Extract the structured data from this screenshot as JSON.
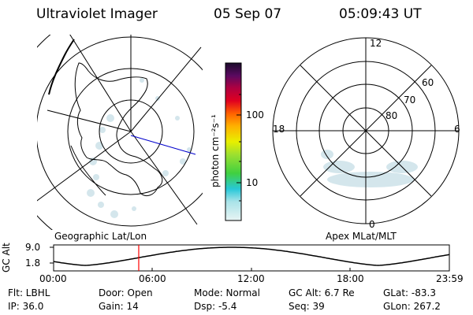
{
  "header": {
    "title": "Ultraviolet Imager",
    "date": "05 Sep 07",
    "time": "05:09:43 UT"
  },
  "geo_panel": {
    "label": "Geographic Lat/Lon"
  },
  "polar_panel": {
    "label": "Apex MLat/MLT",
    "mlt_labels": {
      "top": "12",
      "bottom": "0",
      "left": "18",
      "right": "6"
    },
    "lat_labels": [
      "60",
      "70",
      "80"
    ]
  },
  "colorbar": {
    "unit": "photon cm⁻²s⁻¹",
    "ticks": [
      "100",
      "10"
    ]
  },
  "orbit_plot": {
    "ylabel": "GC Alt",
    "yticks": [
      "9.0",
      "1.8"
    ],
    "xticks": [
      "00:00",
      "06:00",
      "12:00",
      "18:00",
      "23:59"
    ],
    "current_time_fraction": 0.2151
  },
  "info": {
    "flt": "Flt: LBHL",
    "door": "Door: Open",
    "mode": "Mode: Normal",
    "gcalt": "GC Alt: 6.7 Re",
    "glat": "GLat: -83.3",
    "ip": "IP: 36.0",
    "gain": "Gain: 14",
    "dsp": "Dsp:    -5.4",
    "seq": "Seq: 39",
    "glon": "GLon: 267.2"
  },
  "colors": {
    "marker": "#ff0000",
    "noon_line": "#0000cc",
    "aurora": "#cfe3ea"
  }
}
